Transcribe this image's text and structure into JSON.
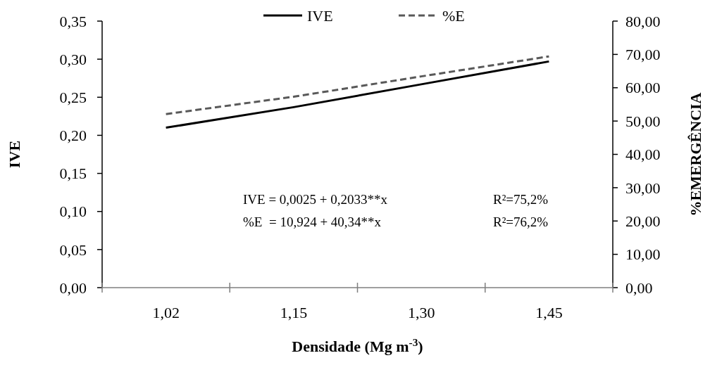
{
  "chart_data": {
    "type": "line",
    "xlabel": "Densidade (Mg m$^{-3}$)",
    "ylabel": "IVE",
    "y2label": "%EMERGÊNCIA",
    "categories": [
      "1,02",
      "1,15",
      "1,30",
      "1,45"
    ],
    "series": [
      {
        "name": "IVE",
        "color": "#000000",
        "line_style": "solid",
        "values": [
          0.21,
          0.237,
          0.267,
          0.297
        ]
      },
      {
        "name": "%E",
        "color": "#595959",
        "line_style": "dashed",
        "axis": "y2",
        "values": [
          52.1,
          57.3,
          63.4,
          69.4
        ]
      }
    ],
    "ylim": [
      0,
      0.35
    ],
    "yticks": [
      {
        "value": 0,
        "label": "0,00"
      },
      {
        "value": 0.05,
        "label": "0,05"
      },
      {
        "value": 0.1,
        "label": "0,10"
      },
      {
        "value": 0.15,
        "label": "0,15"
      },
      {
        "value": 0.2,
        "label": "0,20"
      },
      {
        "value": 0.25,
        "label": "0,25"
      },
      {
        "value": 0.3,
        "label": "0,30"
      },
      {
        "value": 0.35,
        "label": "0,35"
      }
    ],
    "y2lim": [
      0,
      80
    ],
    "y2ticks": [
      {
        "value": 0,
        "label": "0,00"
      },
      {
        "value": 10,
        "label": "10,00"
      },
      {
        "value": 20,
        "label": "20,00"
      },
      {
        "value": 30,
        "label": "30,00"
      },
      {
        "value": 40,
        "label": "40,00"
      },
      {
        "value": 50,
        "label": "50,00"
      },
      {
        "value": 60,
        "label": "60,00"
      },
      {
        "value": 70,
        "label": "70,00"
      },
      {
        "value": 80,
        "label": "80,00"
      }
    ],
    "annotations": [
      "IVE = 0,0025 + 0,2033**x",
      "R²=75,2%",
      "%E  = 10,924 + 40,34**x",
      "R²=76,2%"
    ],
    "legend": "top",
    "grid": false,
    "marker": "none"
  }
}
